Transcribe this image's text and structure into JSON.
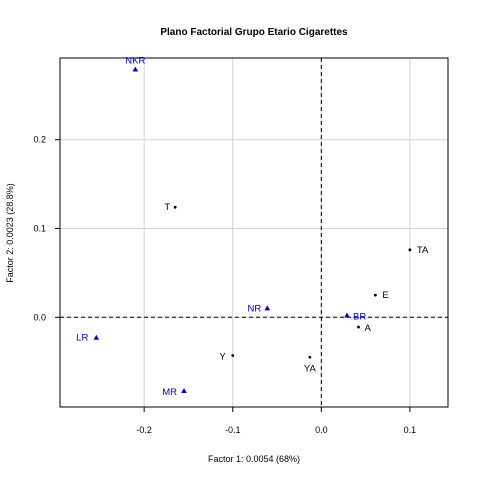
{
  "chart_data": {
    "type": "scatter",
    "title": "Plano Factorial Grupo Etario Cigarettes",
    "xlabel": "Factor 1: 0.0054 (68%)",
    "ylabel": "Factor 2: 0.0023 (28.8%)",
    "xlim": [
      -0.295,
      0.143
    ],
    "ylim": [
      -0.101,
      0.292
    ],
    "x_ticks": [
      -0.2,
      -0.1,
      0.0,
      0.1
    ],
    "x_tick_labels": [
      "-0.2",
      "-0.1",
      "0.0",
      "0.1"
    ],
    "y_ticks": [
      0.0,
      0.1,
      0.2
    ],
    "y_tick_labels": [
      "0.0",
      "0.1",
      "0.2"
    ],
    "grid": true,
    "reference_lines": {
      "x": 0,
      "y": 0,
      "style": "dashed"
    },
    "series": [
      {
        "marker": "circle",
        "color": "#000000",
        "points": [
          {
            "label": "T",
            "x": -0.165,
            "y": 0.124
          },
          {
            "label": "TA",
            "x": 0.1,
            "y": 0.076
          },
          {
            "label": "E",
            "x": 0.061,
            "y": 0.025
          },
          {
            "label": "A",
            "x": 0.042,
            "y": -0.011
          },
          {
            "label": "Y",
            "x": -0.1,
            "y": -0.043
          },
          {
            "label": "YA",
            "x": -0.013,
            "y": -0.045
          }
        ]
      },
      {
        "marker": "triangle",
        "color": "#0000cd",
        "points": [
          {
            "label": "NKR",
            "x": -0.21,
            "y": 0.279
          },
          {
            "label": "NR",
            "x": -0.061,
            "y": 0.01
          },
          {
            "label": "BR",
            "x": 0.029,
            "y": 0.002
          },
          {
            "label": "LR",
            "x": -0.254,
            "y": -0.023
          },
          {
            "label": "MR",
            "x": -0.155,
            "y": -0.083
          }
        ]
      }
    ]
  }
}
